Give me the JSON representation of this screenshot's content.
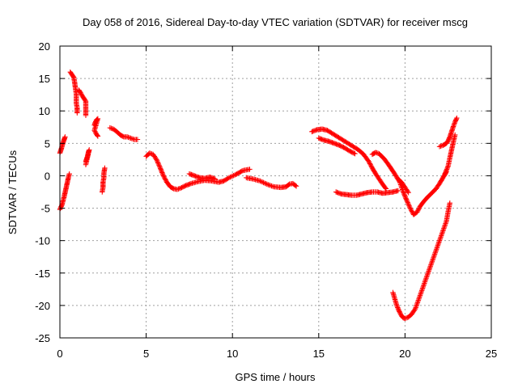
{
  "chart_data": {
    "type": "scatter",
    "title": "Day 058 of 2016, Sidereal Day-to-day VTEC variation (SDTVAR) for receiver mscg",
    "xlabel": "GPS time / hours",
    "ylabel": "SDTVAR / TECUs",
    "xlim": [
      0,
      25
    ],
    "ylim": [
      -25,
      20
    ],
    "xticks": [
      "0",
      "5",
      "10",
      "15",
      "20",
      "25"
    ],
    "yticks": [
      "-25",
      "-20",
      "-15",
      "-10",
      "-5",
      "0",
      "5",
      "10",
      "15",
      "20"
    ],
    "grid": true,
    "marker": "plus",
    "color": "#ff0000",
    "series": [
      {
        "points": [
          [
            0.0,
            3.5
          ],
          [
            0.05,
            3.9
          ],
          [
            0.1,
            4.3
          ],
          [
            0.15,
            4.8
          ],
          [
            0.2,
            5.2
          ],
          [
            0.25,
            5.6
          ],
          [
            0.3,
            6.0
          ]
        ]
      },
      {
        "points": [
          [
            0.0,
            -5.2
          ],
          [
            0.05,
            -4.9
          ],
          [
            0.1,
            -4.6
          ],
          [
            0.15,
            -4.2
          ],
          [
            0.2,
            -3.7
          ],
          [
            0.25,
            -3.2
          ],
          [
            0.3,
            -2.6
          ],
          [
            0.35,
            -2.0
          ],
          [
            0.4,
            -1.4
          ],
          [
            0.45,
            -0.8
          ],
          [
            0.5,
            -0.2
          ],
          [
            0.55,
            0.3
          ]
        ]
      },
      {
        "points": [
          [
            0.6,
            16.0
          ],
          [
            0.7,
            15.6
          ],
          [
            0.8,
            15.2
          ],
          [
            0.85,
            14.5
          ],
          [
            0.9,
            13.5
          ],
          [
            0.95,
            12.6
          ],
          [
            0.95,
            11.2
          ],
          [
            1.0,
            10.5
          ],
          [
            1.0,
            9.7
          ]
        ]
      },
      {
        "points": [
          [
            1.1,
            13.2
          ],
          [
            1.2,
            12.8
          ],
          [
            1.3,
            12.3
          ],
          [
            1.4,
            11.9
          ],
          [
            1.5,
            11.5
          ],
          [
            1.5,
            10.3
          ],
          [
            1.5,
            9.3
          ]
        ]
      },
      {
        "points": [
          [
            1.5,
            2.2
          ],
          [
            1.55,
            2.6
          ],
          [
            1.6,
            3.0
          ],
          [
            1.65,
            3.6
          ],
          [
            1.7,
            4.0
          ],
          [
            1.5,
            1.7
          ]
        ]
      },
      {
        "points": [
          [
            2.0,
            7.8
          ],
          [
            2.05,
            8.2
          ],
          [
            2.1,
            8.5
          ],
          [
            2.15,
            8.7
          ],
          [
            2.2,
            8.8
          ],
          [
            2.0,
            7.0
          ],
          [
            2.1,
            6.5
          ],
          [
            2.2,
            6.1
          ]
        ]
      },
      {
        "points": [
          [
            2.45,
            -2.5
          ],
          [
            2.5,
            -1.8
          ],
          [
            2.5,
            -1.0
          ],
          [
            2.55,
            -0.3
          ],
          [
            2.55,
            0.4
          ],
          [
            2.6,
            1.2
          ]
        ]
      },
      {
        "points": [
          [
            2.9,
            7.4
          ],
          [
            3.1,
            7.2
          ],
          [
            3.3,
            6.8
          ],
          [
            3.5,
            6.3
          ],
          [
            3.7,
            6.0
          ],
          [
            3.9,
            6.0
          ],
          [
            4.1,
            5.8
          ],
          [
            4.3,
            5.6
          ],
          [
            4.5,
            5.6
          ]
        ]
      },
      {
        "points": [
          [
            5.0,
            3.0
          ],
          [
            5.2,
            3.5
          ],
          [
            5.4,
            3.3
          ],
          [
            5.6,
            2.5
          ],
          [
            5.8,
            1.3
          ],
          [
            6.0,
            0.0
          ],
          [
            6.2,
            -1.0
          ],
          [
            6.4,
            -1.7
          ],
          [
            6.6,
            -2.0
          ],
          [
            6.8,
            -2.1
          ],
          [
            7.0,
            -1.9
          ],
          [
            7.3,
            -1.5
          ],
          [
            7.6,
            -1.2
          ],
          [
            8.0,
            -0.9
          ],
          [
            8.4,
            -0.7
          ],
          [
            8.8,
            -0.8
          ],
          [
            9.2,
            -1.0
          ],
          [
            9.5,
            -0.8
          ],
          [
            9.8,
            -0.3
          ],
          [
            10.2,
            0.2
          ],
          [
            10.6,
            0.8
          ],
          [
            11.0,
            1.0
          ]
        ]
      },
      {
        "points": [
          [
            7.5,
            0.3
          ],
          [
            7.8,
            0.0
          ],
          [
            8.1,
            -0.3
          ],
          [
            8.4,
            -0.4
          ],
          [
            8.7,
            -0.2
          ],
          [
            9.0,
            -0.5
          ]
        ]
      },
      {
        "points": [
          [
            10.8,
            -0.3
          ],
          [
            11.2,
            -0.5
          ],
          [
            11.6,
            -0.8
          ],
          [
            12.0,
            -1.3
          ],
          [
            12.4,
            -1.7
          ],
          [
            12.8,
            -1.8
          ],
          [
            13.1,
            -1.7
          ],
          [
            13.3,
            -1.3
          ],
          [
            13.5,
            -1.2
          ],
          [
            13.7,
            -1.6
          ]
        ]
      },
      {
        "points": [
          [
            14.6,
            6.8
          ],
          [
            14.9,
            7.1
          ],
          [
            15.2,
            7.2
          ],
          [
            15.5,
            7.0
          ],
          [
            15.8,
            6.5
          ],
          [
            16.1,
            6.0
          ],
          [
            16.4,
            5.5
          ],
          [
            16.7,
            5.0
          ],
          [
            17.0,
            4.5
          ],
          [
            17.3,
            4.0
          ],
          [
            17.6,
            3.3
          ],
          [
            17.9,
            2.2
          ],
          [
            18.1,
            1.2
          ],
          [
            18.3,
            0.3
          ],
          [
            18.5,
            -0.5
          ],
          [
            18.7,
            -1.3
          ],
          [
            18.9,
            -2.0
          ]
        ]
      },
      {
        "points": [
          [
            15.0,
            5.8
          ],
          [
            15.3,
            5.5
          ],
          [
            15.6,
            5.3
          ],
          [
            15.9,
            5.0
          ],
          [
            16.2,
            4.7
          ],
          [
            16.5,
            4.3
          ],
          [
            16.8,
            3.8
          ],
          [
            17.1,
            3.4
          ]
        ]
      },
      {
        "points": [
          [
            16.0,
            -2.5
          ],
          [
            16.3,
            -2.8
          ],
          [
            16.6,
            -2.9
          ],
          [
            16.9,
            -3.0
          ],
          [
            17.2,
            -3.0
          ],
          [
            17.5,
            -2.8
          ],
          [
            17.8,
            -2.6
          ],
          [
            18.1,
            -2.5
          ],
          [
            18.4,
            -2.5
          ],
          [
            18.7,
            -2.7
          ],
          [
            19.0,
            -2.6
          ],
          [
            19.3,
            -2.5
          ],
          [
            19.6,
            -2.3
          ]
        ]
      },
      {
        "points": [
          [
            18.1,
            3.3
          ],
          [
            18.3,
            3.6
          ],
          [
            18.5,
            3.4
          ],
          [
            18.8,
            2.6
          ],
          [
            19.1,
            1.5
          ],
          [
            19.4,
            0.3
          ],
          [
            19.7,
            -1.0
          ],
          [
            19.9,
            -2.5
          ],
          [
            20.1,
            -3.8
          ],
          [
            20.3,
            -5.0
          ],
          [
            20.5,
            -6.0
          ],
          [
            20.7,
            -5.6
          ],
          [
            20.9,
            -4.6
          ],
          [
            21.2,
            -3.6
          ],
          [
            21.5,
            -2.8
          ],
          [
            21.8,
            -2.0
          ],
          [
            22.0,
            -1.2
          ],
          [
            22.2,
            -0.3
          ],
          [
            22.4,
            0.6
          ]
        ]
      },
      {
        "points": [
          [
            19.6,
            -0.5
          ],
          [
            19.8,
            -1.0
          ],
          [
            20.0,
            -1.8
          ],
          [
            20.2,
            -2.6
          ]
        ]
      },
      {
        "points": [
          [
            19.3,
            -18.0
          ],
          [
            19.4,
            -18.9
          ],
          [
            19.5,
            -19.8
          ],
          [
            19.6,
            -20.5
          ],
          [
            19.7,
            -21.1
          ],
          [
            19.8,
            -21.6
          ],
          [
            19.9,
            -21.9
          ],
          [
            20.0,
            -22.0
          ],
          [
            20.2,
            -21.8
          ],
          [
            20.4,
            -21.3
          ],
          [
            20.6,
            -20.5
          ],
          [
            20.8,
            -19.0
          ],
          [
            21.0,
            -17.5
          ],
          [
            21.2,
            -16.0
          ],
          [
            21.4,
            -14.5
          ],
          [
            21.6,
            -13.0
          ],
          [
            21.8,
            -11.5
          ],
          [
            22.0,
            -10.0
          ],
          [
            22.2,
            -8.5
          ],
          [
            22.4,
            -7.0
          ],
          [
            22.5,
            -5.5
          ],
          [
            22.6,
            -4.2
          ]
        ]
      },
      {
        "points": [
          [
            22.0,
            4.5
          ],
          [
            22.2,
            4.7
          ],
          [
            22.4,
            5.0
          ],
          [
            22.5,
            5.4
          ],
          [
            22.6,
            6.0
          ],
          [
            22.7,
            6.8
          ],
          [
            22.8,
            7.6
          ],
          [
            22.9,
            8.3
          ],
          [
            23.0,
            8.9
          ]
        ]
      },
      {
        "points": [
          [
            22.3,
            0.2
          ],
          [
            22.5,
            1.5
          ],
          [
            22.6,
            2.8
          ],
          [
            22.7,
            4.0
          ],
          [
            22.8,
            5.2
          ],
          [
            22.9,
            6.3
          ]
        ]
      }
    ]
  }
}
